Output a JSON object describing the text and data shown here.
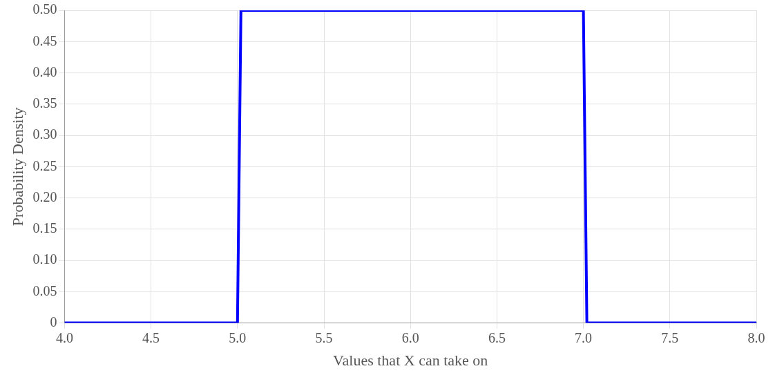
{
  "chart_data": {
    "type": "line",
    "xlabel": "Values that X can take on",
    "ylabel": "Probability Density",
    "x": [
      4,
      5,
      5.02,
      7,
      7.02,
      8
    ],
    "series": [
      {
        "color": "#0000ff",
        "values": [
          0,
          0,
          0.5,
          0.5,
          0,
          0
        ]
      }
    ],
    "xlim": [
      4,
      8
    ],
    "xticks": [
      {
        "value": 4,
        "label": "4.0"
      },
      4.5,
      {
        "value": 5,
        "label": "5.0"
      },
      5.5,
      {
        "value": 6,
        "label": "6.0"
      },
      6.5,
      {
        "value": 7,
        "label": "7.0"
      },
      7.5,
      {
        "value": 8,
        "label": "8.0"
      }
    ],
    "ylim": [
      0,
      0.5
    ],
    "yticks": [
      0,
      0.05,
      {
        "value": 0.1,
        "label": "0.10"
      },
      0.15,
      {
        "value": 0.2,
        "label": "0.20"
      },
      0.25,
      {
        "value": 0.3,
        "label": "0.30"
      },
      0.35,
      {
        "value": 0.4,
        "label": "0.40"
      },
      0.45,
      {
        "value": 0.5,
        "label": "0.50"
      }
    ],
    "grid": true,
    "legend": false,
    "marker": "none",
    "line_style": "solid"
  }
}
